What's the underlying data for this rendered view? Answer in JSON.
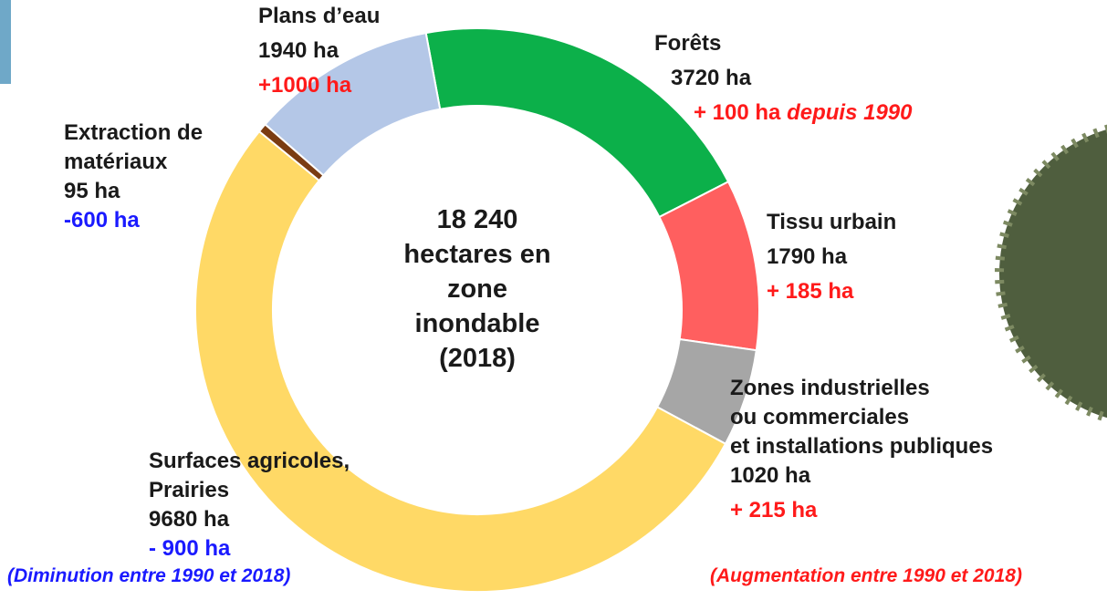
{
  "chart_data": {
    "type": "donut",
    "center_label": "18 240\nhectares en\nzone\ninondable\n(2018)",
    "categories": [
      "Forêts",
      "Tissu urbain",
      "Zones industrielles\nou commerciales\net installations publiques",
      "Surfaces agricoles,\nPrairies",
      "Extraction de\nmatériaux",
      "Plans d’eau"
    ],
    "values": [
      3720,
      1790,
      1020,
      9680,
      95,
      1940
    ],
    "value_labels": [
      "3720 ha",
      "1790 ha",
      "1020 ha",
      "9680 ha",
      "95 ha",
      "1940 ha"
    ],
    "change_labels": [
      "+ 100 ha",
      "+ 185 ha",
      "+ 215 ha",
      "- 900 ha",
      "-600 ha",
      "+1000 ha"
    ],
    "change_note": "depuis 1990",
    "colors": [
      "#0cb04a",
      "#ff5f5f",
      "#a6a6a6",
      "#ffd966",
      "#7b3c12",
      "#b4c7e7"
    ],
    "decrease_color": "#1a1aff",
    "increase_color": "#ff1a1a",
    "footnotes": [
      "(Diminution entre 1990 et 2018)",
      "(Augmentation entre 1990 et 2018)"
    ]
  }
}
